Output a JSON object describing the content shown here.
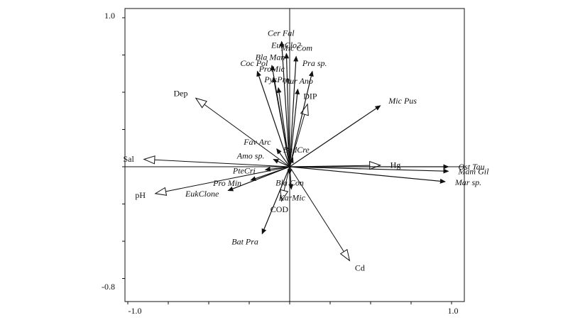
{
  "chart_data": {
    "type": "biplot",
    "xlim": [
      -1.0,
      1.0
    ],
    "ylim": [
      -0.8,
      1.0
    ],
    "x_tick_labels": [
      "-1.0",
      "1.0"
    ],
    "y_tick_labels": [
      "1.0",
      "-0.8"
    ],
    "species": [
      {
        "name": "Cer Fal",
        "x": -0.05,
        "y": 0.84
      },
      {
        "name": "EukClo2",
        "x": -0.02,
        "y": 0.76
      },
      {
        "name": "Mic Com",
        "x": 0.04,
        "y": 0.74
      },
      {
        "name": "Bla Man",
        "x": -0.11,
        "y": 0.68
      },
      {
        "name": "Coc Pol",
        "x": -0.2,
        "y": 0.64
      },
      {
        "name": "ProMic",
        "x": -0.1,
        "y": 0.6
      },
      {
        "name": "Pra sp.",
        "x": 0.14,
        "y": 0.64
      },
      {
        "name": "PycPro",
        "x": -0.07,
        "y": 0.53
      },
      {
        "name": "Aur Ano",
        "x": 0.05,
        "y": 0.52
      },
      {
        "name": "Mic Pus",
        "x": 0.56,
        "y": 0.41
      },
      {
        "name": "Fav Arc",
        "x": -0.08,
        "y": 0.12
      },
      {
        "name": "Amo sp.",
        "x": -0.1,
        "y": 0.05
      },
      {
        "name": "BadCre",
        "x": 0.02,
        "y": 0.06
      },
      {
        "name": "Ost Tau",
        "x": 0.98,
        "y": 0.0
      },
      {
        "name": "Mam Gil",
        "x": 0.98,
        "y": -0.03
      },
      {
        "name": "Mar sp.",
        "x": 0.96,
        "y": -0.1
      },
      {
        "name": "PteCri",
        "x": -0.15,
        "y": -0.02
      },
      {
        "name": "Pro Min",
        "x": -0.24,
        "y": -0.09
      },
      {
        "name": "Bla Con",
        "x": 0.0,
        "y": -0.05
      },
      {
        "name": "KarMic",
        "x": 0.01,
        "y": -0.15
      },
      {
        "name": "EukClone",
        "x": -0.38,
        "y": -0.16
      },
      {
        "name": "Bat Pra",
        "x": -0.17,
        "y": -0.45
      }
    ],
    "environment": [
      {
        "name": "Dep",
        "x": -0.58,
        "y": 0.46
      },
      {
        "name": "Sal",
        "x": -0.9,
        "y": 0.05
      },
      {
        "name": "pH",
        "x": -0.83,
        "y": -0.18
      },
      {
        "name": "DIP",
        "x": 0.11,
        "y": 0.42
      },
      {
        "name": "Hg",
        "x": 0.56,
        "y": 0.01
      },
      {
        "name": "COD",
        "x": -0.05,
        "y": -0.23
      },
      {
        "name": "Cd",
        "x": 0.37,
        "y": -0.63
      }
    ]
  }
}
